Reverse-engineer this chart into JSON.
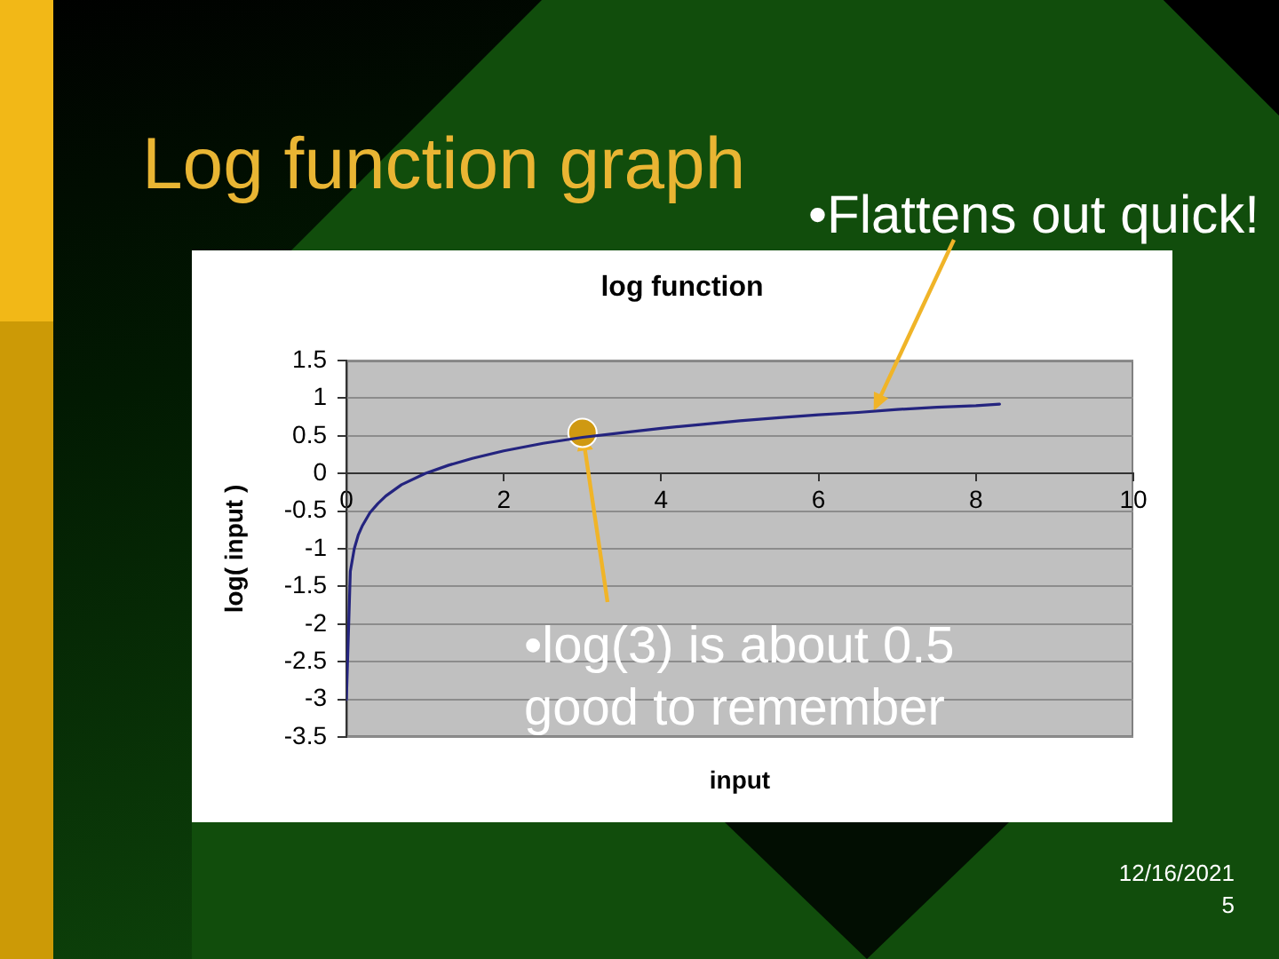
{
  "chart_data": {
    "type": "line",
    "title": "Log function graph",
    "subtitle": "log function",
    "xlabel": "input",
    "ylabel": "log( input )",
    "xlim": [
      0,
      10
    ],
    "xticks": [
      0,
      2,
      4,
      6,
      8,
      10
    ],
    "ylim": [
      -3.5,
      1.5
    ],
    "yticks": [
      -3.5,
      -3,
      -2.5,
      -2,
      -1.5,
      -1,
      -0.5,
      0,
      0.5,
      1,
      1.5
    ],
    "grid": "y",
    "series": [
      {
        "color": "#24247f",
        "marker": "none",
        "x": [
          0,
          0.05,
          0.1,
          0.15,
          0.2,
          0.3,
          0.4,
          0.5,
          0.7,
          1,
          1.3,
          1.6,
          2,
          2.5,
          3,
          3.5,
          4,
          4.5,
          5,
          5.5,
          6,
          6.5,
          7,
          7.5,
          8,
          8.3
        ],
        "values": [
          -3,
          -1.3,
          -1,
          -0.82,
          -0.7,
          -0.52,
          -0.4,
          -0.3,
          -0.15,
          0,
          0.11,
          0.2,
          0.3,
          0.4,
          0.48,
          0.54,
          0.6,
          0.65,
          0.7,
          0.74,
          0.78,
          0.81,
          0.85,
          0.88,
          0.9,
          0.92
        ]
      },
      {
        "type": "scatter",
        "color": "#cf9912",
        "marker": "circle",
        "x": [
          3
        ],
        "values": [
          0.54
        ]
      }
    ],
    "annotations": [
      {
        "text": "•Flattens out quick!",
        "x": 6.7,
        "y": 0.83
      },
      {
        "text": "•log(3) is about 0.5 good to remember",
        "x": 3,
        "y": 0.54
      },
      "12/16/2021",
      "5"
    ]
  }
}
